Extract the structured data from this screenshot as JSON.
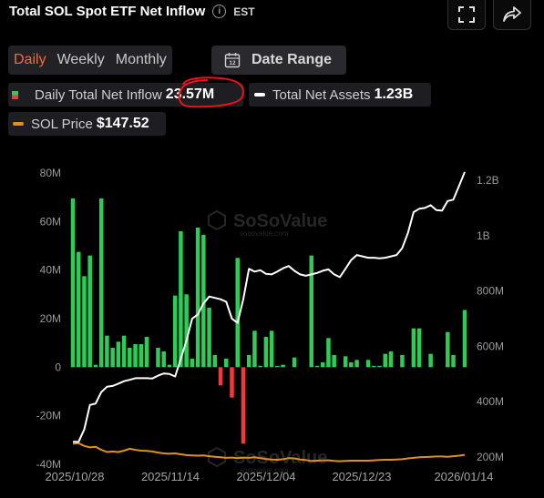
{
  "header": {
    "title": "Total SOL Spot ETF Net Inflow",
    "timezone": "EST",
    "info_icon": "info-circle-icon",
    "fullscreen_icon": "fullscreen-icon",
    "share_icon": "share-icon"
  },
  "controls": {
    "tabs": [
      {
        "label": "Daily",
        "active": true
      },
      {
        "label": "Weekly",
        "active": false
      },
      {
        "label": "Monthly",
        "active": false
      }
    ],
    "date_range_label": "Date Range",
    "calendar_icon": "calendar-icon",
    "calendar_day": "12"
  },
  "legend": {
    "inflow": {
      "label": "Daily Total Net Inflow",
      "value": "23.57M"
    },
    "assets": {
      "label": "Total Net Assets",
      "value": "1.23B"
    },
    "price": {
      "label": "SOL Price",
      "value": "$147.52"
    }
  },
  "watermark": {
    "brand": "SoSoValue",
    "url": "sosovalue.com"
  },
  "colors": {
    "positive": "#2ecc57",
    "negative": "#f03a3a",
    "assets_line": "#ffffff",
    "price_line": "#e0911a",
    "accent": "#f26b3a",
    "annotation": "#e8131b"
  },
  "chart_data": {
    "type": "bar",
    "x_ticks": [
      "2025/10/28",
      "2025/11/14",
      "2025/12/04",
      "2025/12/23",
      "2026/01/14"
    ],
    "left_axis": {
      "ticks": [
        "80M",
        "60M",
        "40M",
        "20M",
        "0",
        "-20M",
        "-40M"
      ],
      "range": [
        -40,
        80
      ],
      "unit": "M"
    },
    "right_axis": {
      "ticks": [
        "1.2B",
        "1B",
        "800M",
        "600M",
        "400M",
        "200M"
      ],
      "range": [
        200,
        1200
      ],
      "unit": "M"
    },
    "series": [
      {
        "name": "Daily Total Net Inflow",
        "type": "bar",
        "values": [
          69.5,
          47.5,
          37.5,
          46,
          1,
          69.5,
          13,
          8,
          10.5,
          13,
          8,
          9.5,
          9.5,
          12.5,
          0,
          8,
          6.5,
          1,
          29.5,
          56,
          30,
          3.5,
          57.5,
          54.5,
          24.5,
          5,
          -7.5,
          3.5,
          -12.5,
          45,
          -31.5,
          5,
          15,
          0.5,
          12.5,
          15,
          0.5,
          1,
          0,
          4,
          0,
          0,
          46,
          0.5,
          2,
          12,
          5,
          0,
          4.5,
          2,
          3,
          0,
          3,
          0.5,
          0.5,
          5.5,
          6.5,
          0,
          5,
          0,
          16,
          16,
          0,
          5.5,
          0,
          0,
          14.5,
          5,
          0,
          23.57
        ]
      },
      {
        "name": "Total Net Assets",
        "type": "line",
        "values": [
          255,
          255,
          300,
          388,
          393,
          435,
          454,
          457,
          465,
          474,
          479,
          485,
          485,
          485,
          484,
          494,
          502,
          500,
          491,
          555,
          620,
          700,
          715,
          755,
          780,
          775,
          770,
          761,
          700,
          685,
          770,
          880,
          870,
          875,
          862,
          860,
          870,
          882,
          890,
          873,
          860,
          855,
          860,
          865,
          873,
          878,
          860,
          850,
          880,
          912,
          930,
          925,
          920,
          920,
          918,
          920,
          925,
          930,
          955,
          1010,
          1085,
          1097,
          1100,
          1110,
          1092,
          1090,
          1125,
          1130,
          1180,
          1230
        ]
      },
      {
        "name": "SOL Price",
        "type": "line",
        "values": [
          248,
          250,
          240,
          235,
          237,
          226,
          218,
          220,
          218,
          223,
          230,
          226,
          223,
          222,
          220,
          216,
          213,
          212,
          213,
          210,
          207,
          206,
          205,
          206,
          203,
          201,
          199,
          197,
          198,
          196,
          198,
          197,
          199,
          196,
          193,
          191,
          190,
          192,
          196,
          195,
          191,
          189,
          186,
          187,
          188,
          188,
          186,
          185,
          186,
          187,
          187,
          187,
          187,
          188,
          189,
          190,
          190,
          191,
          192,
          195,
          197,
          199,
          200,
          201,
          202,
          202,
          201,
          203,
          205,
          208
        ]
      }
    ]
  }
}
